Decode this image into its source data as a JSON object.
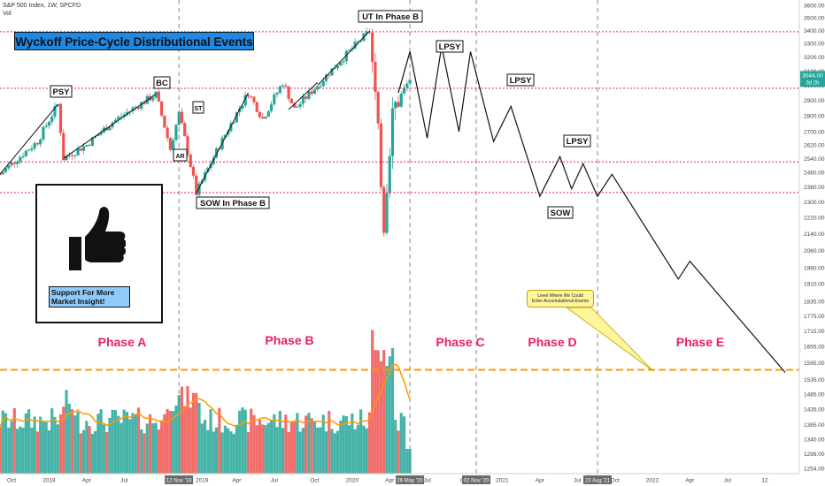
{
  "header": {
    "symbol_line": "S&P 500 Index, 1W, SPCFD",
    "vol_label": "Vol"
  },
  "title_box": {
    "text": "Wyckoff Price-Cycle Distributional Events",
    "bg": "#1e88e5"
  },
  "support_box": {
    "line1": "Support For More",
    "line2": "Market Insight!",
    "icon": "thumbs-up-icon",
    "bg": "#bbdefb"
  },
  "callout": {
    "line1": "Level Where We Could",
    "line2": "Enter Accumulational-Events",
    "bg": "#fff59d"
  },
  "last_price_label": "3d 2h",
  "colors": {
    "up": "#26a69a",
    "down": "#ef5350",
    "ma": "#ff9800",
    "levels": "#e91e63",
    "phase_text": "#e91e63",
    "support_line": "#ff9800"
  },
  "chart_data": {
    "type": "candlestick",
    "title": "Wyckoff Price-Cycle Distributional Events",
    "y_axis_ticks": [
      1254,
      1296,
      1340,
      1385,
      1435,
      1485,
      1535,
      1595,
      1655,
      1715,
      1775,
      1835,
      1910,
      1980,
      2060,
      2140,
      2220,
      2300,
      2380,
      2460,
      2540,
      2620,
      2700,
      2800,
      2900,
      3000,
      3100,
      3200,
      3300,
      3400,
      3500,
      3600
    ],
    "ylim": [
      1230,
      3650
    ],
    "scale": "log",
    "x_axis_ticks": [
      "Oct",
      "2018",
      "Apr",
      "Jul",
      "12 Nov '18",
      "2019",
      "Apr",
      "Jul",
      "Oct",
      "2020",
      "Apr",
      "26 May '20",
      "Jul",
      "Oct",
      "02 Nov '20",
      "2021",
      "Apr",
      "Jul",
      "23 Aug '21",
      "Oct",
      "2022",
      "Apr",
      "Jul",
      "12"
    ],
    "highlighted_dates": [
      "12 Nov '18",
      "26 May '20",
      "02 Nov '20",
      "23 Aug '21"
    ],
    "last_price": 3044,
    "horizontal_levels": [
      3390,
      2980,
      2520,
      2350
    ],
    "support_level": 1560,
    "events": [
      {
        "label": "PSY",
        "value": 2872
      },
      {
        "label": "BC",
        "value": 2940
      },
      {
        "label": "AR",
        "value": 2594
      },
      {
        "label": "ST",
        "value": 2813
      },
      {
        "label": "SOW In Phase B",
        "value": 2346
      },
      {
        "label": "UT In Phase B",
        "value": 3394
      },
      {
        "label": "LPSY",
        "value": 3230
      },
      {
        "label": "LPSY",
        "value": 3270
      },
      {
        "label": "LPSY",
        "value": 2530
      },
      {
        "label": "SOW",
        "value": 2310
      }
    ],
    "phases": [
      "Phase A",
      "Phase B",
      "Phase C",
      "Phase D",
      "Phase E"
    ],
    "projection": [
      [
        "2020-04-27",
        2950
      ],
      [
        "2020-05-25",
        3240
      ],
      [
        "2020-07-06",
        2660
      ],
      [
        "2020-08-10",
        3280
      ],
      [
        "2020-09-21",
        2700
      ],
      [
        "2020-10-19",
        3240
      ],
      [
        "2020-12-14",
        2640
      ],
      [
        "2021-01-25",
        2860
      ],
      [
        "2021-04-05",
        2330
      ],
      [
        "2021-05-24",
        2550
      ],
      [
        "2021-06-21",
        2370
      ],
      [
        "2021-07-19",
        2510
      ],
      [
        "2021-08-23",
        2330
      ],
      [
        "2021-09-27",
        2450
      ],
      [
        "2022-03-07",
        1930
      ],
      [
        "2022-04-04",
        2010
      ],
      [
        "2022-11-21",
        1560
      ]
    ],
    "price_path": [
      [
        "2017-09-04",
        2450
      ],
      [
        "2017-12-04",
        2640
      ],
      [
        "2018-01-22",
        2872
      ],
      [
        "2018-02-05",
        2540
      ],
      [
        "2018-04-02",
        2620
      ],
      [
        "2018-06-04",
        2760
      ],
      [
        "2018-09-17",
        2940
      ],
      [
        "2018-10-22",
        2594
      ],
      [
        "2018-11-12",
        2813
      ],
      [
        "2018-12-24",
        2346
      ],
      [
        "2019-04-29",
        2950
      ],
      [
        "2019-06-03",
        2780
      ],
      [
        "2019-07-22",
        3020
      ],
      [
        "2019-08-19",
        2840
      ],
      [
        "2019-10-14",
        3000
      ],
      [
        "2020-02-17",
        3394
      ],
      [
        "2020-03-23",
        2190
      ],
      [
        "2020-04-13",
        2830
      ],
      [
        "2020-05-25",
        3044
      ]
    ],
    "volume_ma_note": "",
    "legend": ""
  }
}
